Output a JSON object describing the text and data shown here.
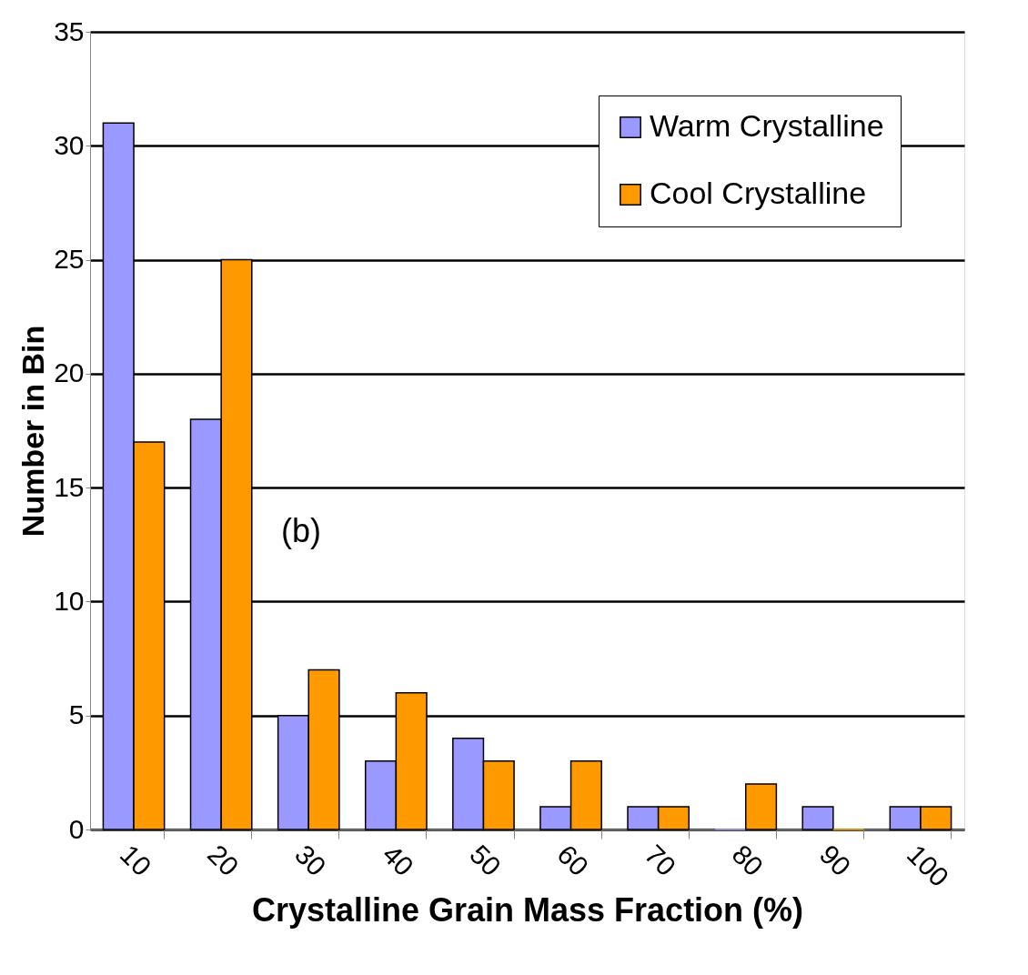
{
  "chart_data": {
    "type": "bar",
    "xlabel": "Crystalline Grain Mass Fraction (%)",
    "ylabel": "Number in Bin",
    "categories": [
      "10",
      "20",
      "30",
      "40",
      "50",
      "60",
      "70",
      "80",
      "90",
      "100"
    ],
    "series": [
      {
        "name": "Warm Crystalline",
        "color": "#9999ff",
        "values": [
          31,
          18,
          5,
          3,
          4,
          1,
          1,
          0,
          1,
          1
        ]
      },
      {
        "name": "Cool Crystalline",
        "color": "#ff9900",
        "values": [
          17,
          25,
          7,
          6,
          3,
          3,
          1,
          2,
          0,
          1
        ]
      }
    ],
    "ylim": [
      0,
      35
    ],
    "yticks": [
      0,
      5,
      10,
      15,
      20,
      25,
      30,
      35
    ],
    "grid": "y",
    "legend": "top right",
    "annotations": [
      "(b)"
    ]
  }
}
